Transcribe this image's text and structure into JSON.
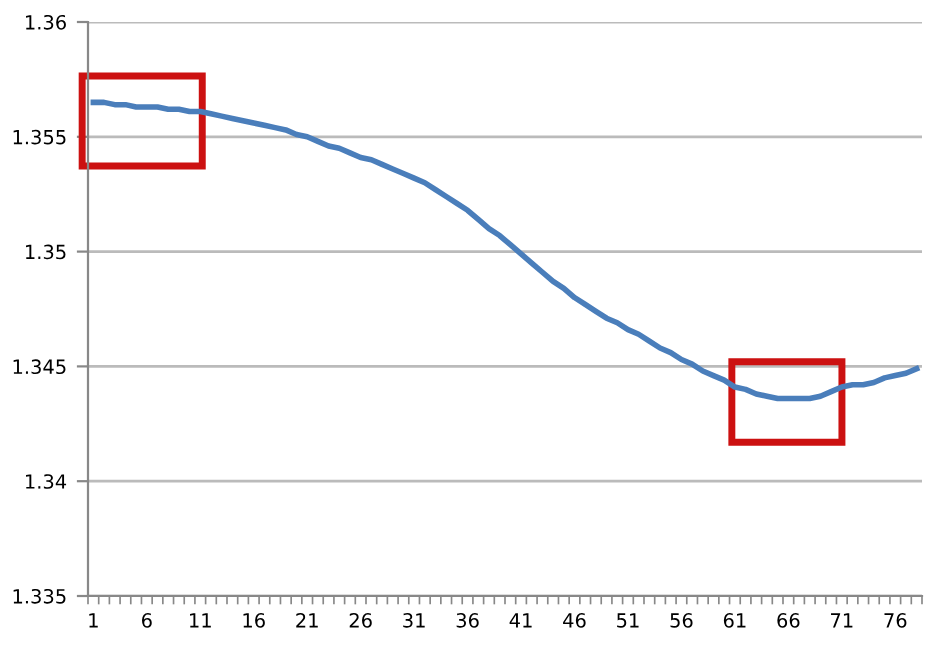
{
  "chart_data": {
    "type": "line",
    "categories": [
      "1",
      null,
      null,
      null,
      null,
      "6",
      null,
      null,
      null,
      null,
      "11",
      null,
      null,
      null,
      null,
      "16",
      null,
      null,
      null,
      null,
      "21",
      null,
      null,
      null,
      null,
      "26",
      null,
      null,
      null,
      null,
      "31",
      null,
      null,
      null,
      null,
      "36",
      null,
      null,
      null,
      null,
      "41",
      null,
      null,
      null,
      null,
      "46",
      null,
      null,
      null,
      null,
      "51",
      null,
      null,
      null,
      null,
      "56",
      null,
      null,
      null,
      null,
      "61",
      null,
      null,
      null,
      null,
      "66",
      null,
      null,
      null,
      null,
      "71",
      null,
      null,
      null,
      null,
      "76",
      null,
      null
    ],
    "series": [
      {
        "color": "#4a7ebb",
        "values": [
          1.3565,
          1.3565,
          1.3564,
          1.3564,
          1.3563,
          1.3563,
          1.3563,
          1.3562,
          1.3562,
          1.3561,
          1.3561,
          1.356,
          1.3559,
          1.3558,
          1.3557,
          1.3556,
          1.3555,
          1.3554,
          1.3553,
          1.3551,
          1.355,
          1.3548,
          1.3546,
          1.3545,
          1.3543,
          1.3541,
          1.354,
          1.3538,
          1.3536,
          1.3534,
          1.3532,
          1.353,
          1.3527,
          1.3524,
          1.3521,
          1.3518,
          1.3514,
          1.351,
          1.3507,
          1.3503,
          1.3499,
          1.3495,
          1.3491,
          1.3487,
          1.3484,
          1.348,
          1.3477,
          1.3474,
          1.3471,
          1.3469,
          1.3466,
          1.3464,
          1.3461,
          1.3458,
          1.3456,
          1.3453,
          1.3451,
          1.3448,
          1.3446,
          1.3444,
          1.3441,
          1.344,
          1.3438,
          1.3437,
          1.3436,
          1.3436,
          1.3436,
          1.3436,
          1.3437,
          1.3439,
          1.3441,
          1.3442,
          1.3442,
          1.3443,
          1.3445,
          1.3446,
          1.3447,
          1.3449
        ]
      }
    ],
    "ylim": [
      1.335,
      1.36
    ],
    "yticks": [
      1.335,
      1.34,
      1.345,
      1.35,
      1.355,
      1.36
    ],
    "grid": "y",
    "marker": "none",
    "line_style": "solid"
  }
}
